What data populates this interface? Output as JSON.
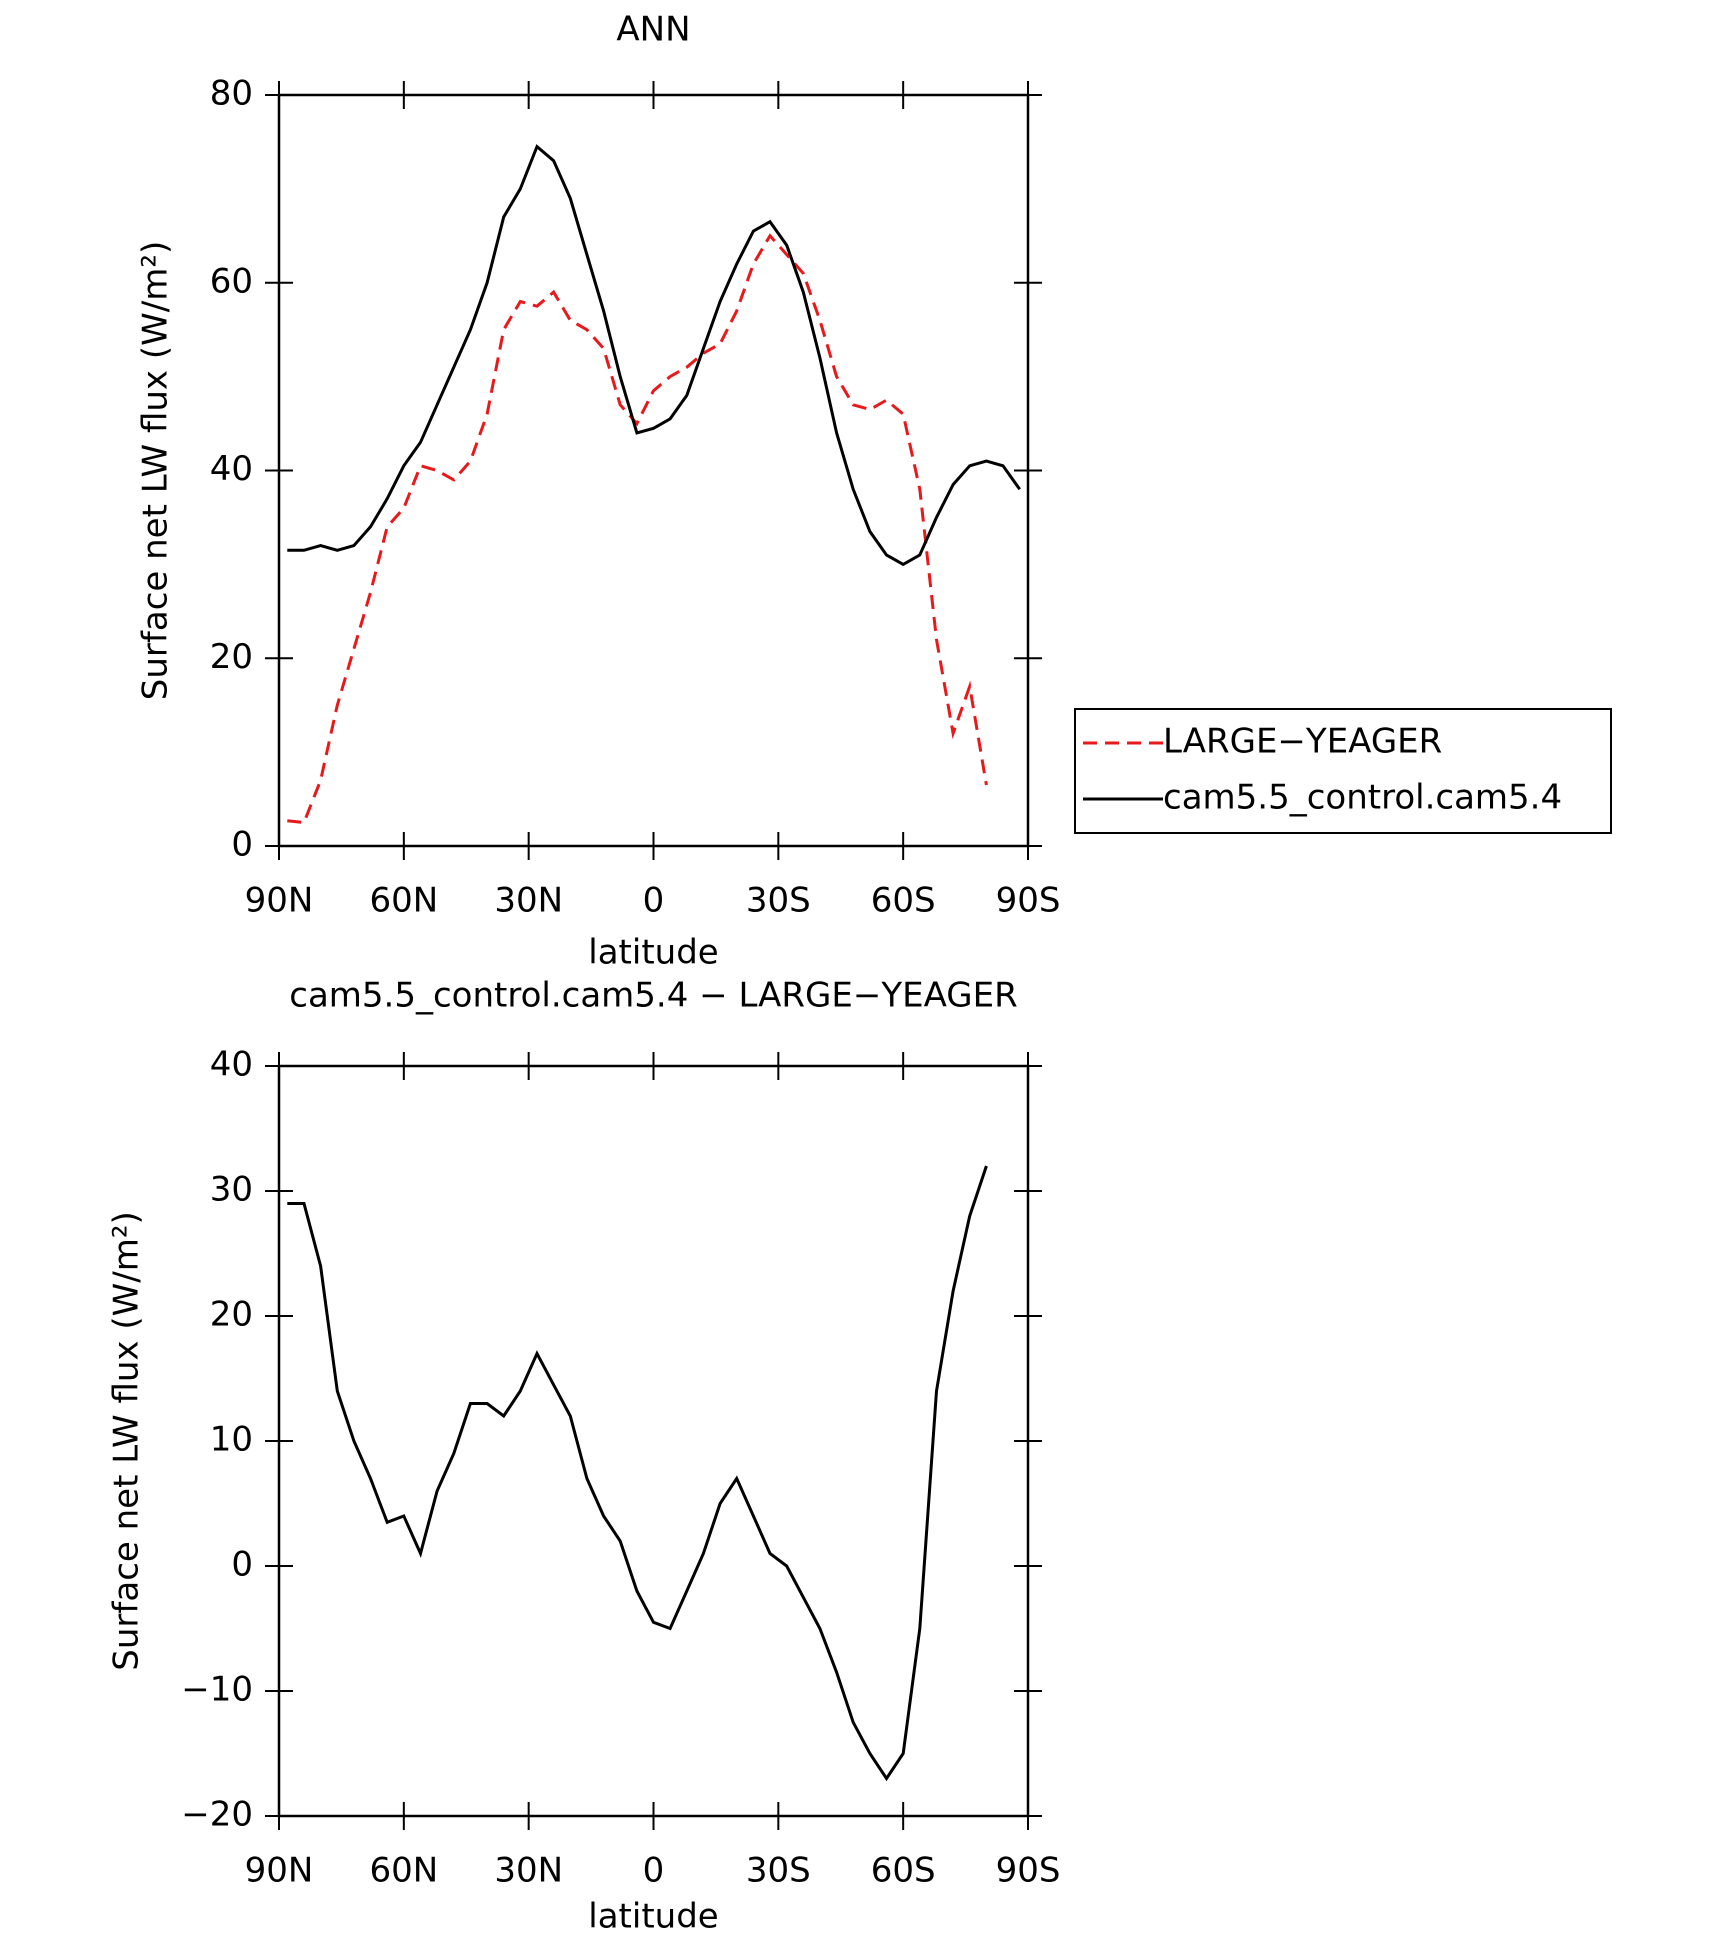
{
  "chart_data": [
    {
      "type": "line",
      "title": "ANN",
      "x_label": "latitude",
      "y_label": "Surface net LW flux (W/m²)",
      "x": [
        88,
        84,
        80,
        76,
        72,
        68,
        64,
        60,
        56,
        52,
        48,
        44,
        40,
        36,
        32,
        28,
        24,
        20,
        16,
        12,
        8,
        4,
        0,
        -4,
        -8,
        -12,
        -16,
        -20,
        -24,
        -28,
        -32,
        -36,
        -40,
        -44,
        -48,
        -52,
        -56,
        -60,
        -64,
        -68,
        -72,
        -76,
        -80,
        -84,
        -88
      ],
      "xlim": [
        90,
        -90
      ],
      "xticks": [
        {
          "value": 90,
          "label": "90N"
        },
        {
          "value": 60,
          "label": "60N"
        },
        {
          "value": 30,
          "label": "30N"
        },
        0,
        {
          "value": -30,
          "label": "30S"
        },
        {
          "value": -60,
          "label": "60S"
        },
        {
          "value": -90,
          "label": "90S"
        }
      ],
      "ylim": [
        0,
        80
      ],
      "yticks": [
        0,
        20,
        40,
        60,
        80
      ],
      "legend": "right",
      "series": [
        {
          "name": "LARGE−YEAGER",
          "color": "#e8191b",
          "dashed": true,
          "values": [
            2.7,
            2.5,
            7,
            15,
            21,
            27,
            34,
            36,
            40.5,
            40,
            39,
            41,
            46,
            55,
            58,
            57.5,
            59,
            56,
            55,
            53,
            47,
            45,
            48.5,
            50,
            51,
            52.5,
            53.5,
            57,
            62,
            65,
            63,
            61,
            56,
            50,
            47,
            46.5,
            47.5,
            46,
            38,
            22,
            12,
            17,
            6.5,
            null,
            null
          ]
        },
        {
          "name": "cam5.5_control.cam5.4",
          "color": "#000000",
          "dashed": false,
          "values": [
            31.5,
            31.5,
            32,
            31.5,
            32,
            34,
            37,
            40.5,
            43,
            47,
            51,
            55,
            60,
            67,
            70,
            74.5,
            73,
            69,
            63,
            57,
            50,
            44,
            44.5,
            45.5,
            48,
            53,
            58,
            62,
            65.5,
            66.5,
            64,
            59,
            52,
            44,
            38,
            33.5,
            31,
            30,
            31,
            35,
            38.5,
            40.5,
            41,
            40.5,
            38
          ]
        }
      ]
    },
    {
      "type": "line",
      "title": "cam5.5_control.cam5.4 − LARGE−YEAGER",
      "x_label": "latitude",
      "y_label": "Surface net LW flux (W/m²)",
      "x": [
        88,
        84,
        80,
        76,
        72,
        68,
        64,
        60,
        56,
        52,
        48,
        44,
        40,
        36,
        32,
        28,
        24,
        20,
        16,
        12,
        8,
        4,
        0,
        -4,
        -8,
        -12,
        -16,
        -20,
        -24,
        -28,
        -32,
        -36,
        -40,
        -44,
        -48,
        -52,
        -56,
        -60,
        -64,
        -68,
        -72,
        -76,
        -80
      ],
      "xlim": [
        90,
        -90
      ],
      "xticks": [
        {
          "value": 90,
          "label": "90N"
        },
        {
          "value": 60,
          "label": "60N"
        },
        {
          "value": 30,
          "label": "30N"
        },
        0,
        {
          "value": -30,
          "label": "30S"
        },
        {
          "value": -60,
          "label": "60S"
        },
        {
          "value": -90,
          "label": "90S"
        }
      ],
      "ylim": [
        -20,
        40
      ],
      "yticks": [
        {
          "value": -20,
          "label": "−20"
        },
        {
          "value": -10,
          "label": "−10"
        },
        0,
        10,
        20,
        30,
        40
      ],
      "series": [
        {
          "color": "#000000",
          "dashed": false,
          "values": [
            29,
            29,
            24,
            14,
            10,
            7,
            3.5,
            4,
            1,
            6,
            9,
            13,
            13,
            12,
            14,
            17,
            14.5,
            12,
            7,
            4,
            2,
            -2,
            -4.5,
            -5,
            -2,
            1,
            5,
            7,
            4,
            1,
            0,
            -2.5,
            -5,
            -8.5,
            -12.5,
            -15,
            -17,
            -15,
            -5,
            14,
            22,
            28,
            32
          ]
        }
      ]
    }
  ]
}
